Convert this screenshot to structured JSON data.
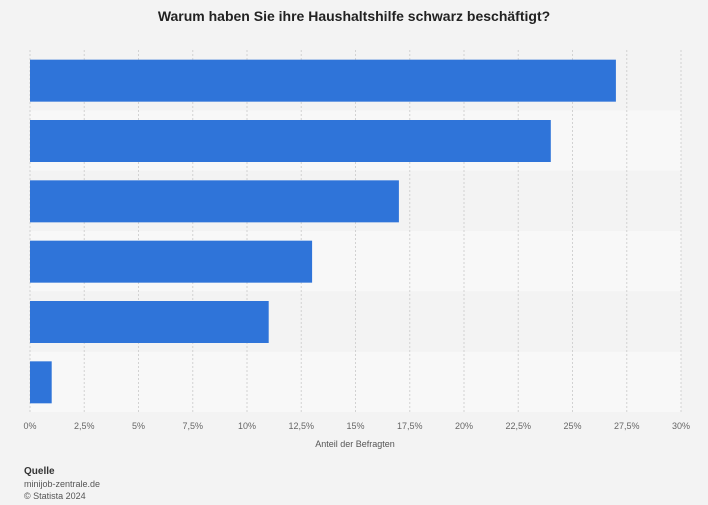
{
  "chart_data": {
    "type": "bar",
    "orientation": "horizontal",
    "title": "Warum haben Sie ihre Haushaltshilfe schwarz beschäftigt?",
    "categories": [
      "",
      "",
      "",
      "",
      "",
      ""
    ],
    "values": [
      27,
      24,
      17,
      13,
      11,
      1
    ],
    "xlabel": "Anteil der Befragten",
    "ylabel": "",
    "xlim": [
      0,
      30
    ],
    "ticks": [
      0,
      2.5,
      5,
      7.5,
      10,
      12.5,
      15,
      17.5,
      20,
      22.5,
      25,
      27.5,
      30
    ],
    "tick_labels": [
      "0%",
      "2,5%",
      "5%",
      "7,5%",
      "10%",
      "12,5%",
      "15%",
      "17,5%",
      "20%",
      "22,5%",
      "25%",
      "27,5%",
      "30%"
    ],
    "grid": true,
    "legend": "none",
    "bar_color": "#2f74d9"
  },
  "footer": {
    "source_heading": "Quelle",
    "source_name": "minijob-zentrale.de",
    "copyright": "© Statista 2024"
  }
}
